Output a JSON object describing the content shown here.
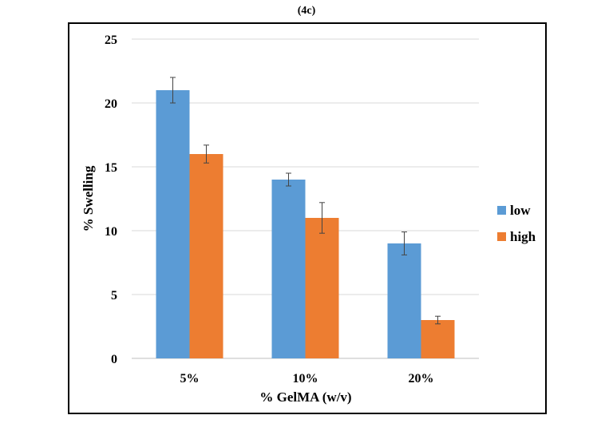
{
  "chart_data": {
    "type": "bar",
    "panel_label": "(4c)",
    "title": "",
    "xlabel": "% GelMA (w/v)",
    "ylabel": "% Swelling",
    "categories": [
      "5%",
      "10%",
      "20%"
    ],
    "series": [
      {
        "name": "low",
        "values": [
          21,
          14,
          9
        ],
        "errors": [
          1.0,
          0.5,
          0.9
        ],
        "color": "#5b9bd5"
      },
      {
        "name": "high",
        "values": [
          16,
          11,
          3
        ],
        "errors": [
          0.7,
          1.2,
          0.3
        ],
        "color": "#ed7d31"
      }
    ],
    "ylim": [
      0,
      25
    ],
    "yticks": [
      "0",
      "5",
      "10",
      "15",
      "20",
      "25"
    ],
    "grid": "horizontal",
    "legend": "right"
  }
}
